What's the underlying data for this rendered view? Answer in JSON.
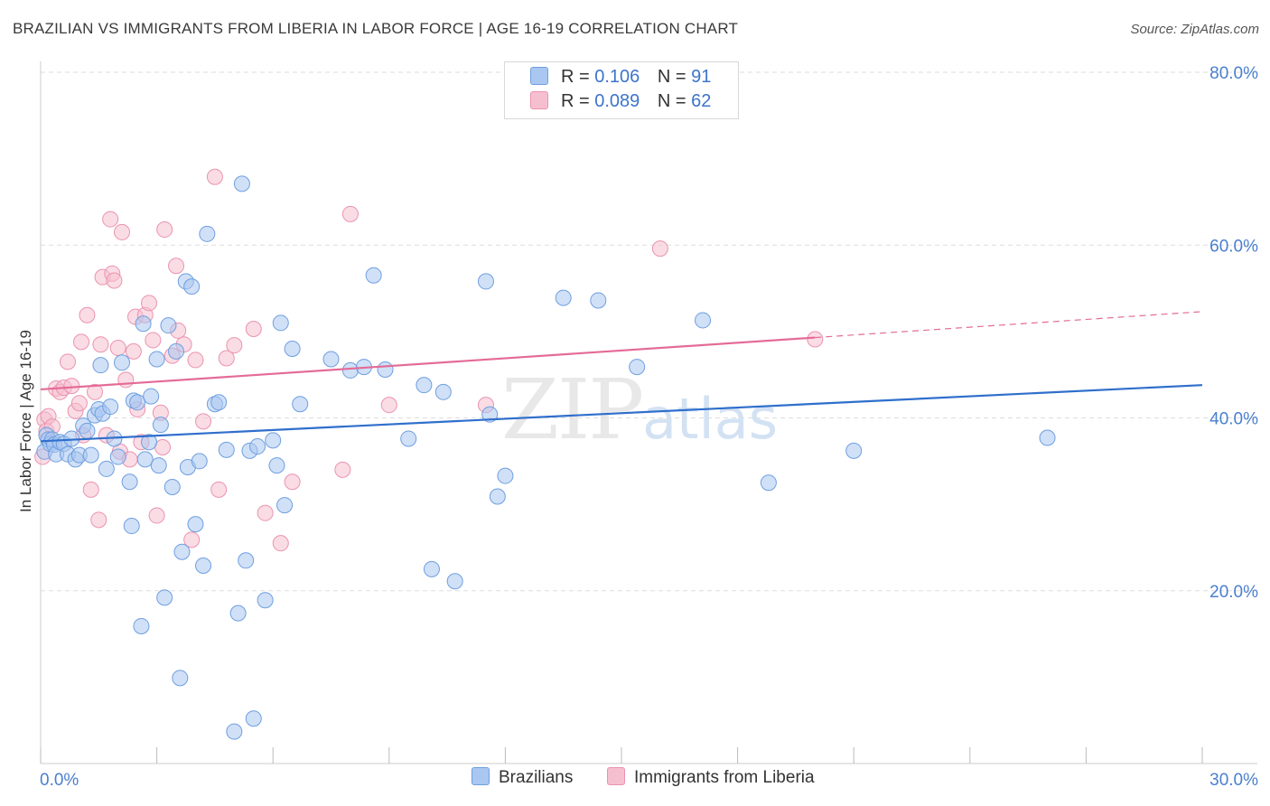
{
  "header": {
    "title": "BRAZILIAN VS IMMIGRANTS FROM LIBERIA IN LABOR FORCE | AGE 16-19 CORRELATION CHART",
    "source": "Source: ZipAtlas.com"
  },
  "watermark": {
    "zip": "ZIP",
    "atlas": "atlas"
  },
  "legend": {
    "rows": [
      {
        "r_label": "R =",
        "r_value": "0.106",
        "n_label": "N =",
        "n_value": "91"
      },
      {
        "r_label": "R =",
        "r_value": "0.089",
        "n_label": "N =",
        "n_value": "62"
      }
    ]
  },
  "bottom_legend": {
    "series1": "Brazilians",
    "series2": "Immigrants from Liberia"
  },
  "colors": {
    "blue_fill": "#a9c7f0",
    "blue_stroke": "#6f9fe0",
    "blue_line": "#2f6fcc",
    "pink_fill": "#f6bfd0",
    "pink_stroke": "#eb93b0",
    "pink_line": "#e46b97",
    "grid": "#dddddd",
    "axis_text": "#4a7fcf"
  },
  "chart_data": {
    "type": "scatter",
    "title": "BRAZILIAN VS IMMIGRANTS FROM LIBERIA IN LABOR FORCE | AGE 16-19 CORRELATION CHART",
    "xlabel": "",
    "ylabel": "In Labor Force | Age 16-19",
    "xlim": [
      0,
      30
    ],
    "ylim": [
      0,
      80
    ],
    "x_tick_labels": [
      "0.0%",
      "30.0%"
    ],
    "y_ticks": [
      20,
      40,
      60,
      80
    ],
    "y_tick_labels": [
      "20.0%",
      "40.0%",
      "60.0%",
      "80.0%"
    ],
    "grid": true,
    "series": [
      {
        "name": "Brazilians",
        "r": 0.106,
        "n": 91,
        "trend": {
          "x": [
            0,
            30
          ],
          "y": [
            37.3,
            43.8
          ]
        },
        "points": [
          [
            0.1,
            36.1
          ],
          [
            0.15,
            38.0
          ],
          [
            0.2,
            37.5
          ],
          [
            0.25,
            37.0
          ],
          [
            0.3,
            37.5
          ],
          [
            0.35,
            36.9
          ],
          [
            0.4,
            35.8
          ],
          [
            0.5,
            37.2
          ],
          [
            0.6,
            37.0
          ],
          [
            0.7,
            35.8
          ],
          [
            0.8,
            37.6
          ],
          [
            0.9,
            35.2
          ],
          [
            1.0,
            35.7
          ],
          [
            1.1,
            39.1
          ],
          [
            1.2,
            38.5
          ],
          [
            1.3,
            35.7
          ],
          [
            1.4,
            40.3
          ],
          [
            1.5,
            41.0
          ],
          [
            1.55,
            46.1
          ],
          [
            1.6,
            40.5
          ],
          [
            1.7,
            34.1
          ],
          [
            1.8,
            41.3
          ],
          [
            1.9,
            37.6
          ],
          [
            2.0,
            35.5
          ],
          [
            2.1,
            46.4
          ],
          [
            2.3,
            32.6
          ],
          [
            2.35,
            27.5
          ],
          [
            2.4,
            42.0
          ],
          [
            2.5,
            41.8
          ],
          [
            2.6,
            15.9
          ],
          [
            2.65,
            50.9
          ],
          [
            2.7,
            35.2
          ],
          [
            2.8,
            37.2
          ],
          [
            2.85,
            42.5
          ],
          [
            3.0,
            46.8
          ],
          [
            3.05,
            34.5
          ],
          [
            3.1,
            39.2
          ],
          [
            3.2,
            19.2
          ],
          [
            3.3,
            50.7
          ],
          [
            3.4,
            32.0
          ],
          [
            3.5,
            47.7
          ],
          [
            3.6,
            9.9
          ],
          [
            3.65,
            24.5
          ],
          [
            3.75,
            55.8
          ],
          [
            3.8,
            34.3
          ],
          [
            3.9,
            55.2
          ],
          [
            4.0,
            27.7
          ],
          [
            4.1,
            35.0
          ],
          [
            4.2,
            22.9
          ],
          [
            4.3,
            61.3
          ],
          [
            4.5,
            41.6
          ],
          [
            4.6,
            41.8
          ],
          [
            4.8,
            36.3
          ],
          [
            5.0,
            3.7
          ],
          [
            5.1,
            17.4
          ],
          [
            5.2,
            67.1
          ],
          [
            5.3,
            23.5
          ],
          [
            5.4,
            36.2
          ],
          [
            5.5,
            5.2
          ],
          [
            5.6,
            36.7
          ],
          [
            5.8,
            18.9
          ],
          [
            6.0,
            37.4
          ],
          [
            6.1,
            34.5
          ],
          [
            6.2,
            51.0
          ],
          [
            6.3,
            29.9
          ],
          [
            6.5,
            48.0
          ],
          [
            6.7,
            41.6
          ],
          [
            7.5,
            46.8
          ],
          [
            8.0,
            45.5
          ],
          [
            8.35,
            45.9
          ],
          [
            8.6,
            56.5
          ],
          [
            8.9,
            45.6
          ],
          [
            9.5,
            37.6
          ],
          [
            9.9,
            43.8
          ],
          [
            10.1,
            22.5
          ],
          [
            10.4,
            43.0
          ],
          [
            10.7,
            21.1
          ],
          [
            11.5,
            55.8
          ],
          [
            11.6,
            40.4
          ],
          [
            11.8,
            30.9
          ],
          [
            12.0,
            33.3
          ],
          [
            13.5,
            53.9
          ],
          [
            14.4,
            53.6
          ],
          [
            15.4,
            45.9
          ],
          [
            17.1,
            51.3
          ],
          [
            18.8,
            32.5
          ],
          [
            21.0,
            36.2
          ],
          [
            26.0,
            37.7
          ]
        ]
      },
      {
        "name": "Immigrants from Liberia",
        "r": 0.089,
        "n": 62,
        "trend": {
          "x": [
            0,
            20
          ],
          "y": [
            43.3,
            49.3
          ]
        },
        "trend_dashed": {
          "x": [
            20,
            30
          ],
          "y": [
            49.3,
            52.3
          ]
        },
        "points": [
          [
            0.05,
            35.5
          ],
          [
            0.1,
            39.8
          ],
          [
            0.15,
            38.5
          ],
          [
            0.2,
            40.2
          ],
          [
            0.3,
            39.0
          ],
          [
            0.4,
            43.4
          ],
          [
            0.5,
            43.0
          ],
          [
            0.6,
            43.5
          ],
          [
            0.7,
            46.5
          ],
          [
            0.8,
            43.7
          ],
          [
            0.9,
            40.8
          ],
          [
            1.0,
            41.7
          ],
          [
            1.05,
            48.8
          ],
          [
            1.1,
            38.0
          ],
          [
            1.2,
            51.9
          ],
          [
            1.3,
            31.7
          ],
          [
            1.4,
            43.0
          ],
          [
            1.5,
            28.2
          ],
          [
            1.55,
            48.5
          ],
          [
            1.6,
            56.3
          ],
          [
            1.7,
            38.0
          ],
          [
            1.8,
            63.0
          ],
          [
            1.85,
            56.7
          ],
          [
            1.9,
            55.9
          ],
          [
            2.0,
            48.1
          ],
          [
            2.05,
            36.1
          ],
          [
            2.1,
            61.5
          ],
          [
            2.2,
            44.4
          ],
          [
            2.3,
            35.2
          ],
          [
            2.4,
            47.7
          ],
          [
            2.45,
            51.7
          ],
          [
            2.5,
            41.0
          ],
          [
            2.6,
            37.2
          ],
          [
            2.7,
            51.9
          ],
          [
            2.8,
            53.3
          ],
          [
            2.9,
            49.0
          ],
          [
            3.0,
            28.7
          ],
          [
            3.1,
            40.6
          ],
          [
            3.15,
            36.6
          ],
          [
            3.2,
            61.8
          ],
          [
            3.4,
            47.2
          ],
          [
            3.5,
            57.6
          ],
          [
            3.55,
            50.1
          ],
          [
            3.7,
            48.5
          ],
          [
            3.9,
            25.9
          ],
          [
            4.0,
            46.7
          ],
          [
            4.2,
            39.6
          ],
          [
            4.5,
            67.9
          ],
          [
            4.6,
            31.7
          ],
          [
            4.8,
            46.9
          ],
          [
            5.0,
            48.4
          ],
          [
            5.5,
            50.3
          ],
          [
            5.8,
            29.0
          ],
          [
            6.2,
            25.5
          ],
          [
            6.5,
            32.6
          ],
          [
            7.8,
            34.0
          ],
          [
            8.0,
            63.6
          ],
          [
            9.0,
            41.5
          ],
          [
            11.5,
            41.5
          ],
          [
            16.0,
            59.6
          ],
          [
            20.0,
            49.1
          ]
        ]
      }
    ]
  }
}
